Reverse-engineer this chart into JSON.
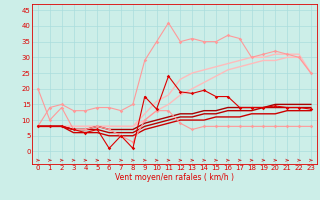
{
  "xlabel": "Vent moyen/en rafales ( km/h )",
  "bg_color": "#cceee8",
  "grid_color": "#aadddd",
  "x_ticks": [
    0,
    1,
    2,
    3,
    4,
    5,
    6,
    7,
    8,
    9,
    10,
    11,
    12,
    13,
    14,
    15,
    16,
    17,
    18,
    19,
    20,
    21,
    22,
    23
  ],
  "y_ticks": [
    0,
    5,
    10,
    15,
    20,
    25,
    30,
    35,
    40,
    45
  ],
  "ylim": [
    -4,
    47
  ],
  "xlim": [
    -0.5,
    23.5
  ],
  "series": [
    {
      "x": [
        0,
        1,
        2,
        3,
        4,
        5,
        6,
        7,
        8,
        9,
        10,
        11,
        12,
        13,
        14,
        15,
        16,
        17,
        18,
        19,
        20,
        21,
        22,
        23
      ],
      "y": [
        8,
        8,
        8,
        7,
        6,
        7,
        1,
        5,
        1,
        17.5,
        13.5,
        24,
        19,
        18.5,
        19.5,
        17.5,
        17.5,
        14,
        14,
        14,
        14.5,
        14,
        14,
        13.5
      ],
      "color": "#dd0000",
      "lw": 0.8,
      "marker": "D",
      "ms": 1.8,
      "zorder": 5
    },
    {
      "x": [
        0,
        1,
        2,
        3,
        4,
        5,
        6,
        7,
        8,
        9,
        10,
        11,
        12,
        13,
        14,
        15,
        16,
        17,
        18,
        19,
        20,
        21,
        22,
        23
      ],
      "y": [
        8,
        8,
        8,
        6,
        6,
        6,
        5,
        5,
        5,
        7,
        8,
        9,
        10,
        10,
        10,
        11,
        11,
        11,
        12,
        12,
        12,
        13,
        13,
        13
      ],
      "color": "#cc0000",
      "lw": 1.0,
      "marker": null,
      "ms": 0,
      "zorder": 3
    },
    {
      "x": [
        0,
        1,
        2,
        3,
        4,
        5,
        6,
        7,
        8,
        9,
        10,
        11,
        12,
        13,
        14,
        15,
        16,
        17,
        18,
        19,
        20,
        21,
        22,
        23
      ],
      "y": [
        8,
        8,
        8,
        7,
        7,
        7,
        6,
        6,
        6,
        8,
        9,
        10,
        11,
        11,
        12,
        12,
        13,
        13,
        13,
        14,
        14,
        14,
        14,
        14
      ],
      "color": "#bb0000",
      "lw": 1.0,
      "marker": null,
      "ms": 0,
      "zorder": 3
    },
    {
      "x": [
        0,
        1,
        2,
        3,
        4,
        5,
        6,
        7,
        8,
        9,
        10,
        11,
        12,
        13,
        14,
        15,
        16,
        17,
        18,
        19,
        20,
        21,
        22,
        23
      ],
      "y": [
        8,
        8,
        8,
        7,
        7,
        8,
        7,
        7,
        7,
        9,
        10,
        11,
        12,
        12,
        13,
        13,
        14,
        14,
        14,
        14,
        15,
        15,
        15,
        15
      ],
      "color": "#aa0000",
      "lw": 1.0,
      "marker": null,
      "ms": 0,
      "zorder": 3
    },
    {
      "x": [
        0,
        1,
        2,
        3,
        4,
        5,
        6,
        7,
        8,
        9,
        10,
        11,
        12,
        13,
        14,
        15,
        16,
        17,
        18,
        19,
        20,
        21,
        22,
        23
      ],
      "y": [
        20,
        10,
        14,
        7,
        7,
        8,
        7,
        5,
        3,
        10,
        13,
        13,
        9,
        7,
        8,
        8,
        8,
        8,
        8,
        8,
        8,
        8,
        8,
        8
      ],
      "color": "#ff9999",
      "lw": 0.8,
      "marker": "D",
      "ms": 1.8,
      "zorder": 4
    },
    {
      "x": [
        0,
        1,
        2,
        3,
        4,
        5,
        6,
        7,
        8,
        9,
        10,
        11,
        12,
        13,
        14,
        15,
        16,
        17,
        18,
        19,
        20,
        21,
        22,
        23
      ],
      "y": [
        8,
        14,
        15,
        13,
        13,
        14,
        14,
        13,
        15,
        29,
        35,
        41,
        35,
        36,
        35,
        35,
        37,
        36,
        30,
        31,
        32,
        31,
        30,
        25
      ],
      "color": "#ff9999",
      "lw": 0.8,
      "marker": "D",
      "ms": 1.8,
      "zorder": 4
    },
    {
      "x": [
        0,
        1,
        2,
        3,
        4,
        5,
        6,
        7,
        8,
        9,
        10,
        11,
        12,
        13,
        14,
        15,
        16,
        17,
        18,
        19,
        20,
        21,
        22,
        23
      ],
      "y": [
        8,
        8,
        8,
        8,
        8,
        8,
        8,
        8,
        8,
        12,
        16,
        18,
        23,
        25,
        26,
        27,
        28,
        29,
        30,
        30,
        31,
        31,
        31,
        25
      ],
      "color": "#ffbbbb",
      "lw": 1.0,
      "marker": null,
      "ms": 0,
      "zorder": 2
    },
    {
      "x": [
        0,
        1,
        2,
        3,
        4,
        5,
        6,
        7,
        8,
        9,
        10,
        11,
        12,
        13,
        14,
        15,
        16,
        17,
        18,
        19,
        20,
        21,
        22,
        23
      ],
      "y": [
        8,
        8,
        8,
        8,
        8,
        8,
        8,
        8,
        8,
        10,
        13,
        15,
        18,
        20,
        22,
        24,
        26,
        27,
        28,
        29,
        29,
        30,
        30,
        25
      ],
      "color": "#ffbbbb",
      "lw": 1.0,
      "marker": null,
      "ms": 0,
      "zorder": 2
    }
  ],
  "arrow_color": "#cc2222",
  "tick_color": "#dd0000",
  "tick_fontsize": 5.0,
  "xlabel_fontsize": 5.5
}
